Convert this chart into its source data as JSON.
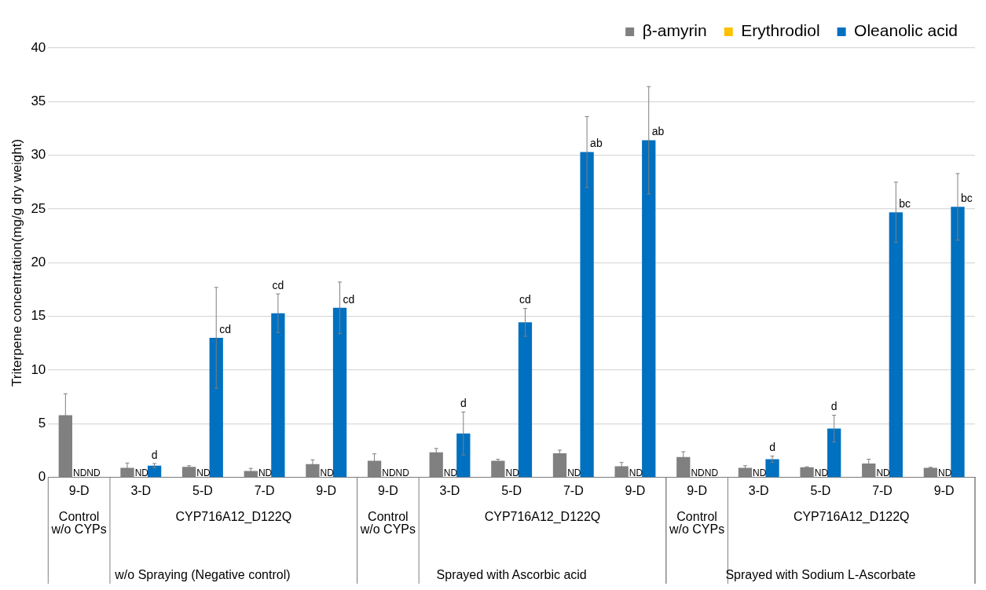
{
  "chart_data": {
    "type": "bar",
    "ylabel": "Triterpene concentration(mg/g dry weight)",
    "categories": [
      "9-D",
      "3-D",
      "5-D",
      "7-D",
      "9-D",
      "9-D",
      "3-D",
      "5-D",
      "7-D",
      "9-D",
      "9-D",
      "3-D",
      "5-D",
      "7-D",
      "9-D"
    ],
    "series": [
      {
        "name": "β-amyrin",
        "color": "#808080",
        "values": [
          5.8,
          0.9,
          1.0,
          0.6,
          1.25,
          1.55,
          2.35,
          1.55,
          2.25,
          1.05,
          1.9,
          0.9,
          0.95,
          1.3,
          0.9
        ],
        "errors": [
          2.0,
          0.45,
          0.1,
          0.25,
          0.4,
          0.65,
          0.35,
          0.15,
          0.3,
          0.35,
          0.5,
          0.2,
          0.05,
          0.4,
          0.05
        ]
      },
      {
        "name": "Erythrodiol",
        "color": "#ffc000",
        "values": [
          null,
          null,
          null,
          null,
          null,
          null,
          null,
          null,
          null,
          null,
          null,
          null,
          null,
          null,
          null
        ],
        "value_labels": [
          "ND",
          "ND",
          "ND",
          "ND",
          "ND",
          "ND",
          "ND",
          "ND",
          "ND",
          "ND",
          "ND",
          "ND",
          "ND",
          "ND",
          "ND"
        ]
      },
      {
        "name": "Oleanolic acid",
        "color": "#0070c0",
        "values": [
          null,
          1.1,
          13.0,
          15.3,
          15.8,
          null,
          4.1,
          14.45,
          30.3,
          31.4,
          null,
          1.7,
          4.55,
          24.7,
          25.2
        ],
        "errors": [
          null,
          0.2,
          4.7,
          1.8,
          2.4,
          null,
          2.0,
          1.3,
          3.3,
          5.0,
          null,
          0.3,
          1.25,
          2.8,
          3.1
        ],
        "value_labels": [
          "ND",
          "d",
          "cd",
          "cd",
          "cd",
          "ND",
          "d",
          "cd",
          "ab",
          "ab",
          "ND",
          "d",
          "d",
          "bc",
          "bc"
        ]
      }
    ],
    "ylim": [
      0,
      40
    ],
    "yticks": [
      0,
      5,
      10,
      15,
      20,
      25,
      30,
      35,
      40
    ],
    "grid": "y",
    "legend": "top right",
    "annotations": [
      "Control w/o CYPs",
      "CYP716A12_D122Q",
      "Control w/o CYPs",
      "CYP716A12_D122Q",
      "Control w/o CYPs",
      "CYP716A12_D122Q",
      "w/o Spraying (Negative control)",
      "Sprayed with Ascorbic acid",
      "Sprayed with Sodium L-Ascorbate"
    ]
  }
}
